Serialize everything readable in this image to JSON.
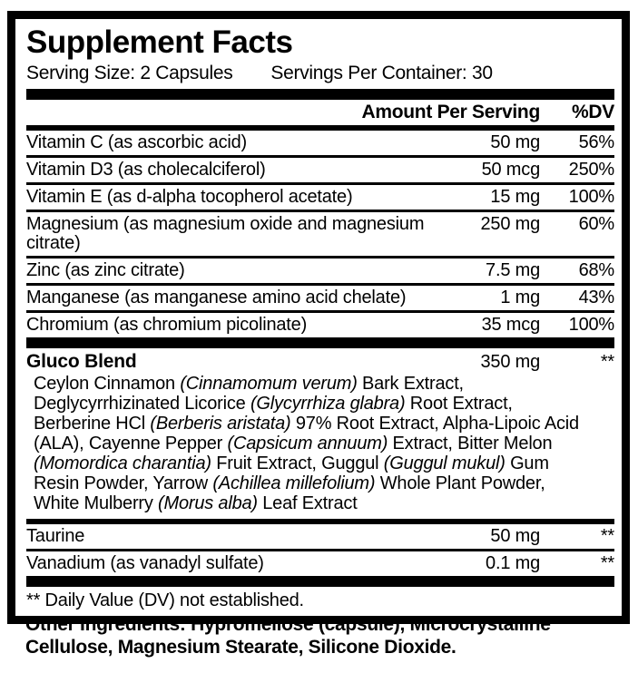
{
  "colors": {
    "ink": "#000000",
    "paper": "#ffffff"
  },
  "label": {
    "title": "Supplement Facts",
    "serving": {
      "size": "Serving Size: 2 Capsules",
      "per_container": "Servings Per Container: 30"
    },
    "columns": {
      "amount": "Amount Per Serving",
      "dv": "%DV"
    },
    "nutrients": [
      {
        "name": "Vitamin C (as ascorbic acid)",
        "amount": "50 mg",
        "dv": "56%"
      },
      {
        "name": "Vitamin D3 (as cholecalciferol)",
        "amount": "50 mcg",
        "dv": "250%"
      },
      {
        "name": "Vitamin E (as d-alpha tocopherol acetate)",
        "amount": "15 mg",
        "dv": "100%"
      },
      {
        "name": "Magnesium (as magnesium oxide and magnesium citrate)",
        "amount": "250 mg",
        "dv": "60%"
      },
      {
        "name": "Zinc (as zinc citrate)",
        "amount": "7.5 mg",
        "dv": "68%"
      },
      {
        "name": "Manganese (as manganese amino acid chelate)",
        "amount": "1 mg",
        "dv": "43%"
      },
      {
        "name": "Chromium (as chromium picolinate)",
        "amount": "35 mcg",
        "dv": "100%"
      }
    ],
    "blend": {
      "name": "Gluco Blend",
      "amount": "350 mg",
      "dv": "**",
      "description_segments": [
        {
          "text": "Ceylon Cinnamon ",
          "italic": false
        },
        {
          "text": "(Cinnamomum verum)",
          "italic": true
        },
        {
          "text": " Bark Extract, Deglycyrrhizinated Licorice ",
          "italic": false
        },
        {
          "text": "(Glycyrrhiza glabra)",
          "italic": true
        },
        {
          "text": " Root Extract, Berberine HCl ",
          "italic": false
        },
        {
          "text": "(Berberis aristata)",
          "italic": true
        },
        {
          "text": " 97% Root Extract, Alpha-Lipoic Acid (ALA), Cayenne Pepper ",
          "italic": false
        },
        {
          "text": "(Capsicum annuum)",
          "italic": true
        },
        {
          "text": " Extract, Bitter Melon ",
          "italic": false
        },
        {
          "text": "(Momordica charantia)",
          "italic": true
        },
        {
          "text": " Fruit Extract, Guggul ",
          "italic": false
        },
        {
          "text": "(Guggul mukul)",
          "italic": true
        },
        {
          "text": " Gum Resin Powder, Yarrow ",
          "italic": false
        },
        {
          "text": "(Achillea millefolium)",
          "italic": true
        },
        {
          "text": " Whole Plant Powder, White Mulberry ",
          "italic": false
        },
        {
          "text": "(Morus alba)",
          "italic": true
        },
        {
          "text": " Leaf Extract",
          "italic": false
        }
      ]
    },
    "extra_nutrients": [
      {
        "name": "Taurine",
        "amount": "50 mg",
        "dv": "**"
      },
      {
        "name": "Vanadium (as vanadyl sulfate)",
        "amount": "0.1 mg",
        "dv": "**"
      }
    ],
    "footnote": "** Daily Value (DV) not established.",
    "other_ingredients": {
      "label": "Other Ingredients:",
      "text": " Hypromellose (capsule), Microcrystalline Cellulose, Magnesium Stearate, Silicone Dioxide."
    }
  }
}
